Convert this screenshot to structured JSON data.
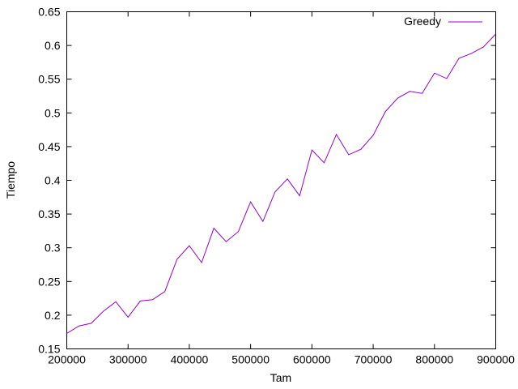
{
  "chart_data": {
    "type": "line",
    "title": "",
    "xlabel": "Tam",
    "ylabel": "Tiempo",
    "xlim": [
      200000,
      900000
    ],
    "ylim": [
      0.15,
      0.65
    ],
    "grid": false,
    "legend_position": "top-right",
    "x_ticks": [
      200000,
      300000,
      400000,
      500000,
      600000,
      700000,
      800000,
      900000
    ],
    "x_tick_labels": [
      "200000",
      "300000",
      "400000",
      "500000",
      "600000",
      "700000",
      "800000",
      "900000"
    ],
    "y_ticks": [
      0.15,
      0.2,
      0.25,
      0.3,
      0.35,
      0.4,
      0.45,
      0.5,
      0.55,
      0.6,
      0.65
    ],
    "y_tick_labels": [
      "0.15",
      "0.2",
      "0.25",
      "0.3",
      "0.35",
      "0.4",
      "0.45",
      "0.5",
      "0.55",
      "0.6",
      "0.65"
    ],
    "series": [
      {
        "name": "Greedy",
        "color": "#9400d3",
        "x": [
          200000,
          220000,
          240000,
          260000,
          280000,
          300000,
          320000,
          340000,
          360000,
          380000,
          400000,
          420000,
          440000,
          460000,
          480000,
          500000,
          520000,
          540000,
          560000,
          580000,
          600000,
          620000,
          640000,
          660000,
          680000,
          700000,
          720000,
          740000,
          760000,
          780000,
          800000,
          820000,
          840000,
          860000,
          880000,
          900000
        ],
        "y": [
          0.173,
          0.184,
          0.188,
          0.206,
          0.22,
          0.197,
          0.221,
          0.223,
          0.235,
          0.283,
          0.303,
          0.278,
          0.329,
          0.309,
          0.324,
          0.368,
          0.339,
          0.383,
          0.402,
          0.377,
          0.445,
          0.426,
          0.468,
          0.438,
          0.446,
          0.467,
          0.502,
          0.522,
          0.532,
          0.529,
          0.559,
          0.551,
          0.581,
          0.588,
          0.598,
          0.617
        ]
      }
    ]
  }
}
